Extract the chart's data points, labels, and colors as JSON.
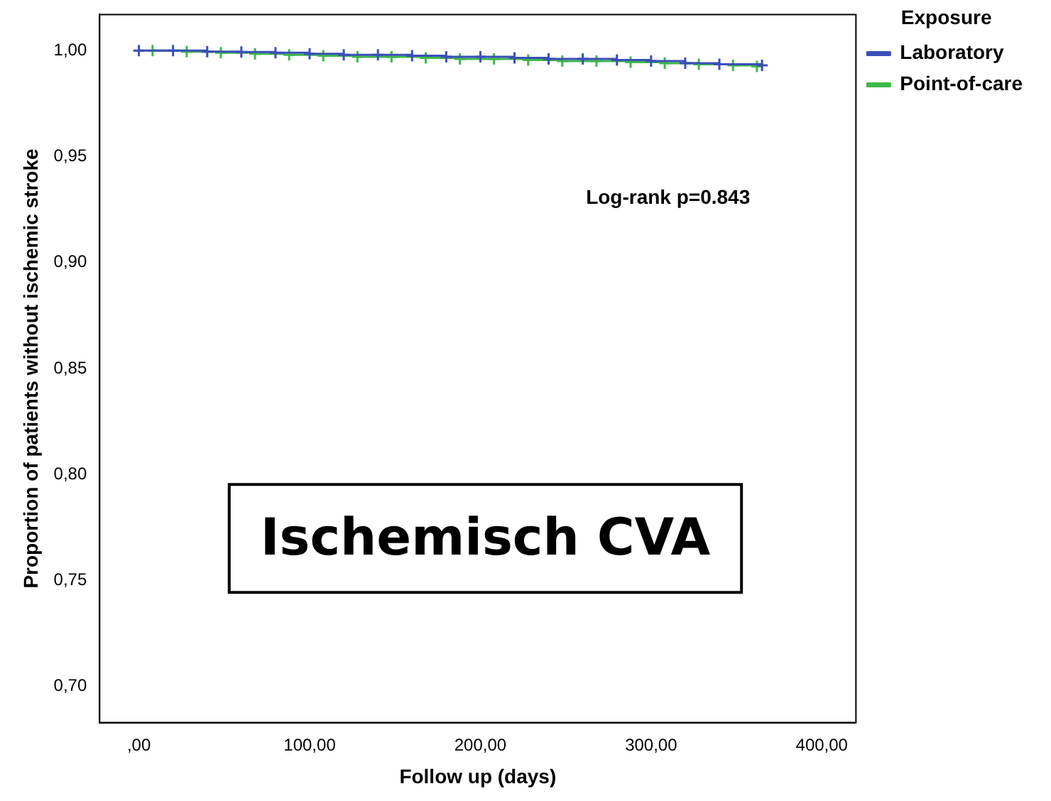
{
  "chart_data": {
    "type": "step",
    "title": "Ischemisch CVA",
    "xlabel": "Follow up (days)",
    "ylabel": "Proportion of patients without ischemic stroke",
    "legend_title": "Exposure",
    "annotations": [
      "Log-rank p=0.843"
    ],
    "x": [
      0,
      20,
      40,
      60,
      80,
      100,
      120,
      140,
      160,
      180,
      200,
      220,
      240,
      260,
      280,
      300,
      320,
      340,
      365
    ],
    "series": [
      {
        "name": "Laboratory",
        "color": "#3a4fb8",
        "values": [
          1.0,
          1.0,
          0.9995,
          0.9993,
          0.999,
          0.9985,
          0.998,
          0.998,
          0.9975,
          0.997,
          0.997,
          0.9965,
          0.996,
          0.996,
          0.9955,
          0.995,
          0.994,
          0.9935,
          0.993
        ]
      },
      {
        "name": "Point-of-care",
        "color": "#3cb84a",
        "x": [
          8,
          28,
          48,
          68,
          88,
          108,
          128,
          148,
          168,
          188,
          208,
          228,
          248,
          268,
          288,
          308,
          328,
          348,
          362
        ],
        "values": [
          1.0,
          0.9995,
          0.999,
          0.9985,
          0.998,
          0.9975,
          0.997,
          0.997,
          0.9965,
          0.996,
          0.996,
          0.9955,
          0.995,
          0.995,
          0.9945,
          0.994,
          0.9935,
          0.993,
          0.9925
        ]
      }
    ],
    "xlim": [
      -23,
      420
    ],
    "ylim": [
      0.683,
      1.017
    ],
    "xticks": [
      {
        "value": 0,
        "label": ",00"
      },
      {
        "value": 100,
        "label": "100,00"
      },
      {
        "value": 200,
        "label": "200,00"
      },
      {
        "value": 300,
        "label": "300,00"
      },
      {
        "value": 400,
        "label": "400,00"
      }
    ],
    "yticks": [
      {
        "value": 0.7,
        "label": "0,70"
      },
      {
        "value": 0.75,
        "label": "0,75"
      },
      {
        "value": 0.8,
        "label": "0,80"
      },
      {
        "value": 0.85,
        "label": "0,85"
      },
      {
        "value": 0.9,
        "label": "0,90"
      },
      {
        "value": 0.95,
        "label": "0,95"
      },
      {
        "value": 1.0,
        "label": "1,00"
      }
    ],
    "grid": false,
    "legend": "top right",
    "marker": "cross",
    "line_style": "solid"
  }
}
